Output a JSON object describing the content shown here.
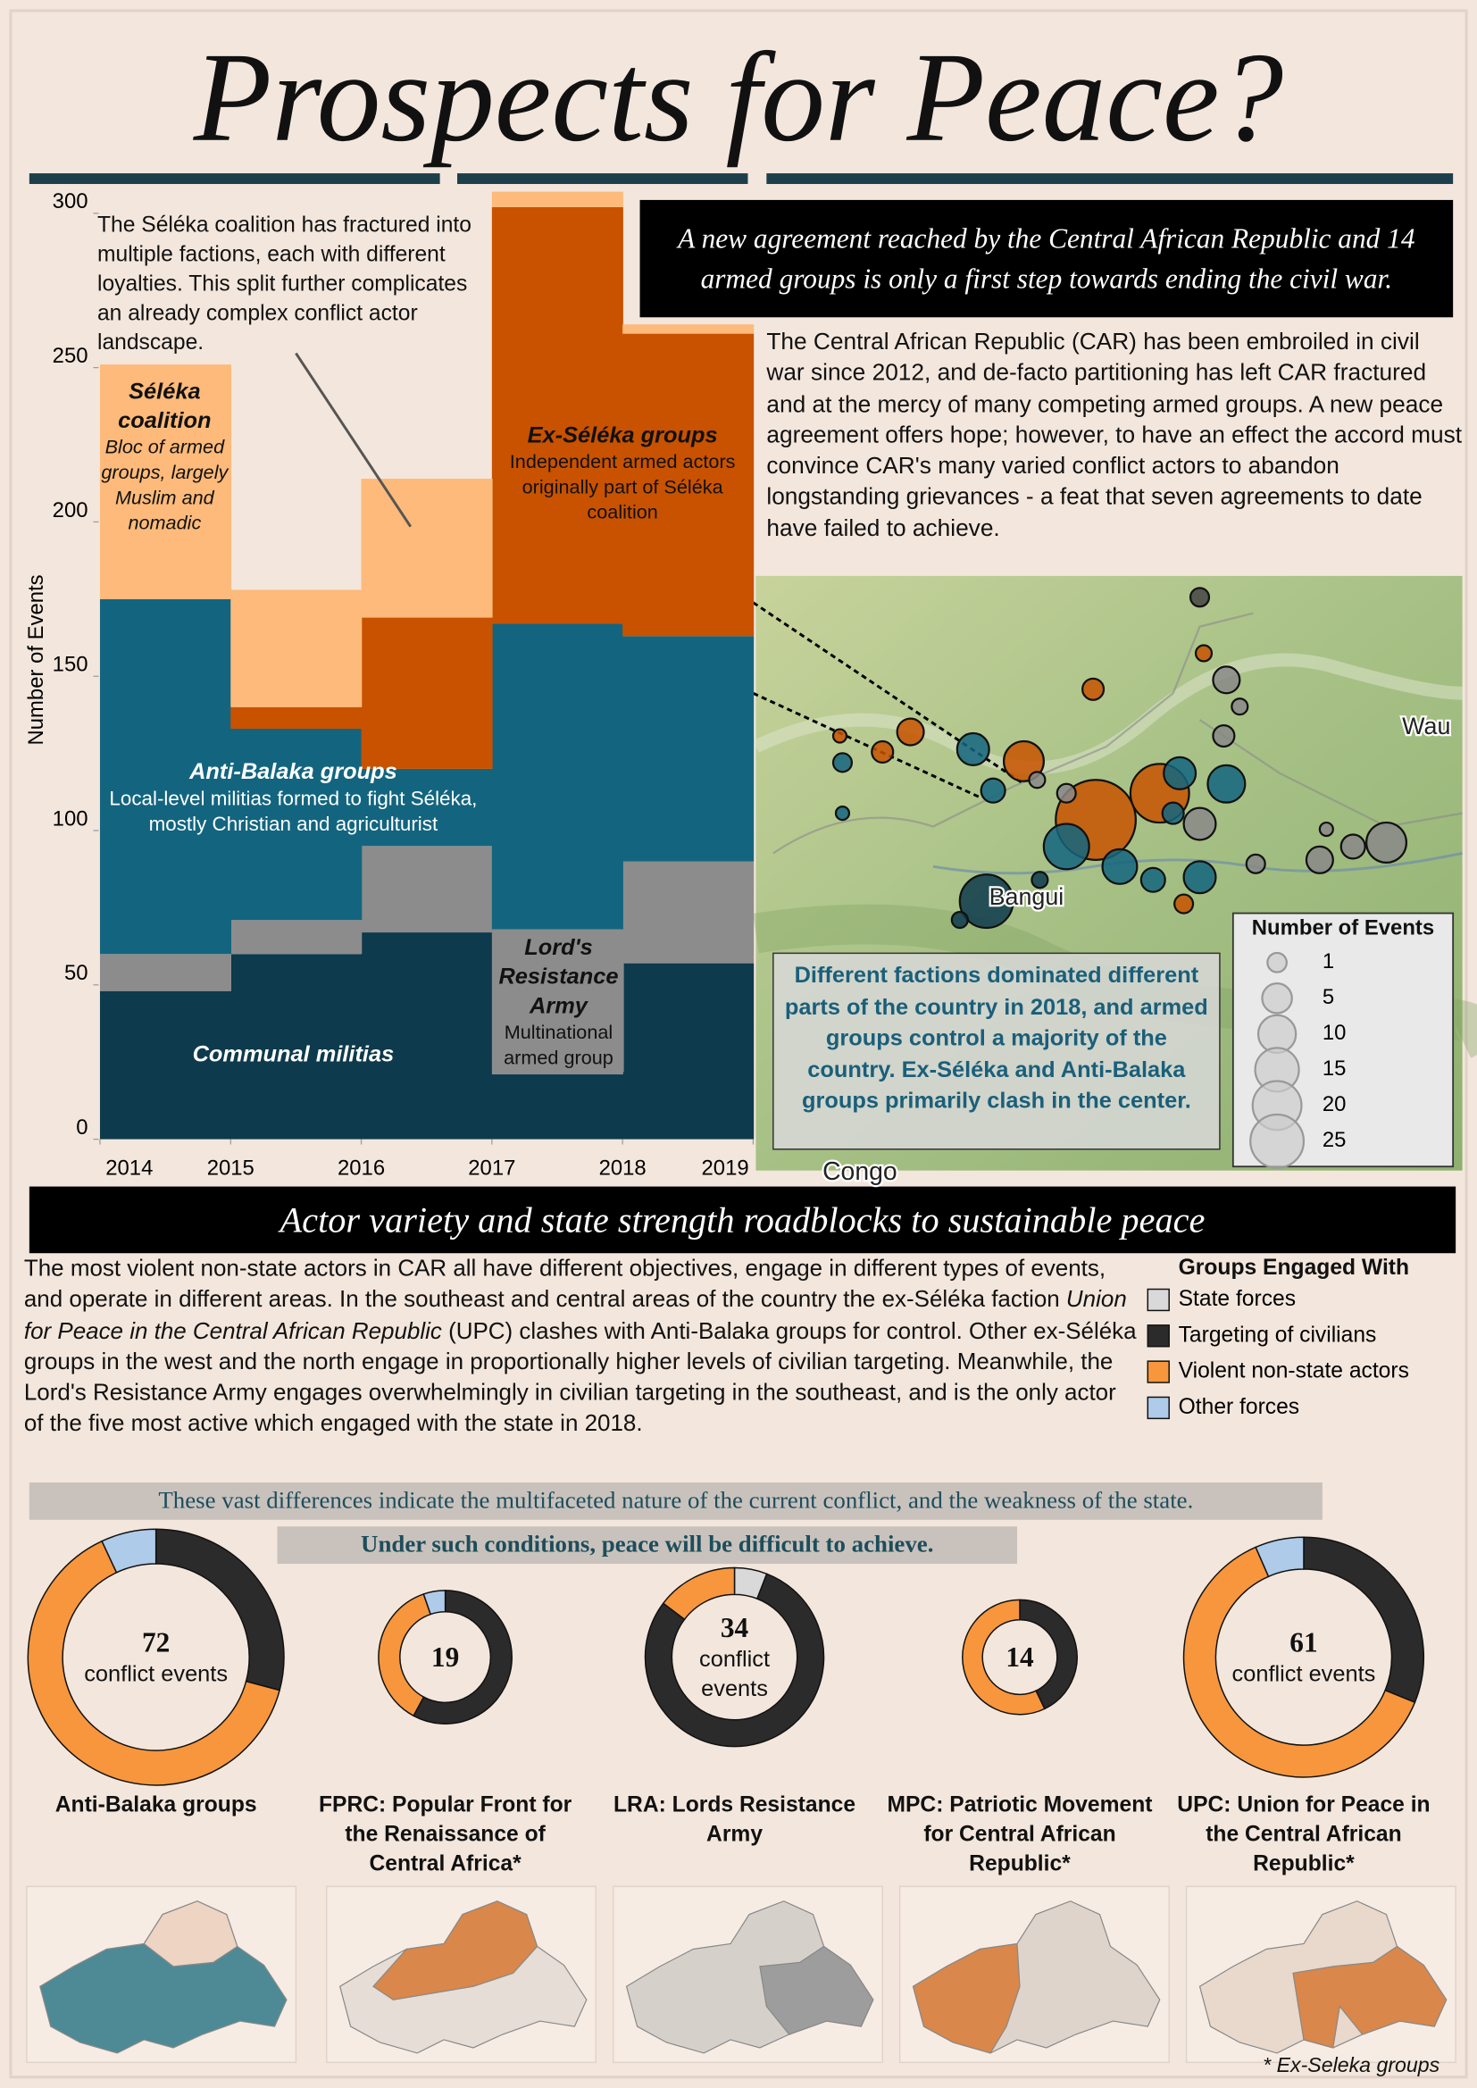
{
  "header": {
    "title": "Prospects for Peace?",
    "banner": "A new agreement reached by the Central African Republic and 14 armed groups is only a first step towards ending the civil war.",
    "intro": "The Central African Republic (CAR) has been embroiled in civil war since 2012, and de-facto partitioning has left CAR fractured and at the mercy of many competing armed groups. A new peace agreement offers hope; however, to have an effect the accord must convince CAR's many varied conflict actors to abandon longstanding grievances - a feat that seven agreements to date have failed to achieve."
  },
  "map": {
    "caption": "Different factions dominated different parts of the country in 2018, and armed groups control a majority of the country. Ex-Séléka and Anti-Balaka groups primarily clash in the center.",
    "places": [
      "Wau",
      "Bangui",
      "Congo"
    ],
    "size_legend": {
      "title": "Number of Events",
      "values": [
        1,
        5,
        10,
        15,
        20,
        25
      ]
    }
  },
  "section": {
    "banner": "Actor variety and state strength roadblocks to sustainable peace",
    "body": [
      "The most violent non-state actors in CAR all have different objectives, engage in different types of events, and operate in different areas. In the southeast and central areas of the country the ex-Séléka faction ",
      "Union for Peace in the Central African Republic",
      " (UPC) clashes with Anti-Balaka groups for control. Other ex-Séléka groups in the west and the north engage in proportionally higher levels of civilian targeting. Meanwhile, the Lord's Resistance Army engages overwhelmingly in civilian targeting in the southeast, and is the only actor of the five most active which engaged with the state in 2018."
    ],
    "highlight_1": "These vast differences indicate the multifaceted nature of the current conflict, and the weakness of the state.",
    "highlight_2": "Under such conditions, peace will be difficult to achieve."
  },
  "groups": {
    "title": "Groups Engaged With",
    "names": [
      "State forces",
      "Targeting of civilians",
      "Violent non-state actors",
      "Other forces"
    ],
    "colors": [
      "#d9d9d9",
      "#2b2b2b",
      "#f7963d",
      "#aecbea"
    ]
  },
  "chart_data": [
    {
      "type": "step-area",
      "annotation": "The Séléka coalition has fractured into multiple factions, each with different loyalties. This split further complicates an already complex conflict actor landscape.",
      "y_label": "Number of Events",
      "x": [
        2014,
        2015,
        2016,
        2017,
        2018
      ],
      "xlim": [
        2014,
        2019
      ],
      "xticks": [
        2014,
        2015,
        2016,
        2017,
        2018,
        2019
      ],
      "ylim": [
        0,
        310
      ],
      "yticks": [
        0,
        50,
        100,
        150,
        200,
        250,
        300
      ],
      "series": [
        {
          "name": "Communal militias",
          "color": "#0d3a4c",
          "values": [
            48,
            60,
            67,
            21,
            57
          ]
        },
        {
          "name": "Lord's Resistance Army",
          "description": "Multinational armed group",
          "color": "#8c8c8c",
          "values": [
            12,
            11,
            28,
            47,
            33
          ]
        },
        {
          "name": "Anti-Balaka groups",
          "description": "Local-level militias formed to fight Séléka, mostly Christian and agriculturist",
          "color": "#13657f",
          "values": [
            115,
            62,
            25,
            99,
            73
          ]
        },
        {
          "name": "Ex-Séléka groups",
          "description": "Independent armed actors originally part of Séléka coalition",
          "color": "#c85200",
          "values": [
            0,
            7,
            49,
            135,
            98
          ]
        },
        {
          "name": "Séléka coalition",
          "description": "Bloc of armed groups, largely Muslim and nomadic",
          "color": "#fdba7a",
          "values": [
            76,
            38,
            45,
            5,
            3
          ]
        }
      ]
    },
    {
      "type": "donut",
      "title": "Anti-Balaka groups",
      "total": 72,
      "center_label": "conflict events",
      "values": [
        0,
        21,
        46,
        5
      ]
    },
    {
      "type": "donut",
      "title": "FPRC: Popular Front for the Renaissance of Central Africa*",
      "total": 19,
      "values": [
        0,
        11,
        7,
        1
      ]
    },
    {
      "type": "donut",
      "title": "LRA: Lords Resistance Army",
      "total": 34,
      "center_label": "conflict events",
      "values": [
        2,
        27,
        5,
        0
      ]
    },
    {
      "type": "donut",
      "title": "MPC: Patriotic Movement for Central African Republic*",
      "total": 14,
      "values": [
        0,
        6,
        8,
        0
      ]
    },
    {
      "type": "donut",
      "title": "UPC: Union for Peace in the Central African Republic*",
      "total": 61,
      "center_label": "conflict events",
      "values": [
        0,
        19,
        38,
        4
      ]
    }
  ],
  "footnote": "* Ex-Seleka groups"
}
